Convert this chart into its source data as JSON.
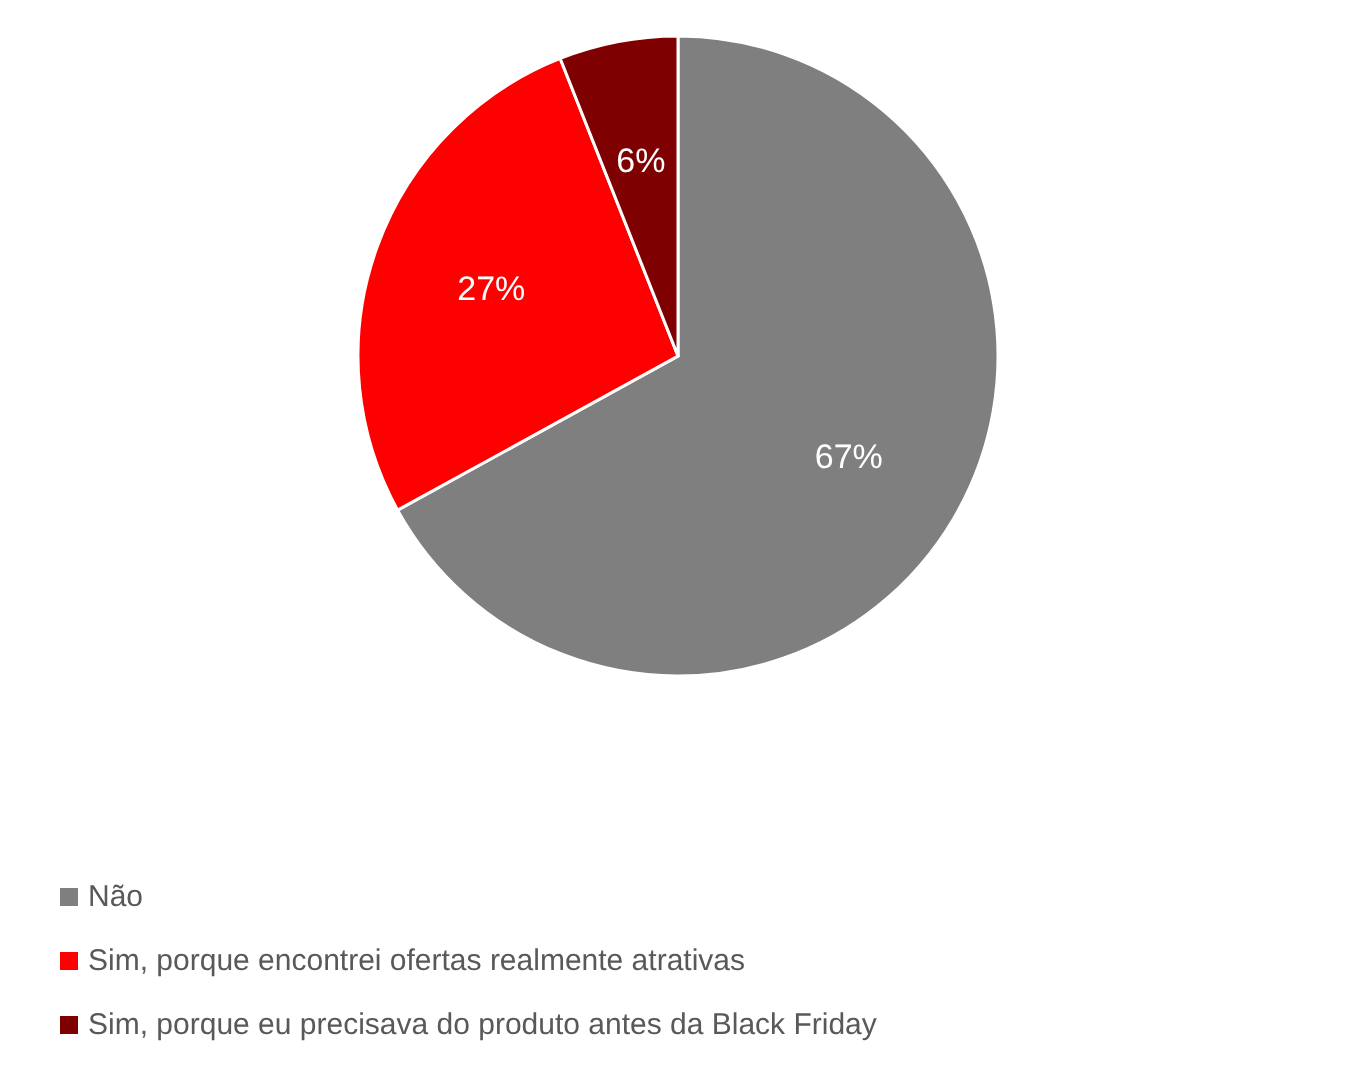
{
  "chart_data": {
    "type": "pie",
    "categories": [
      "Não",
      "Sim, porque encontrei ofertas realmente atrativas",
      "Sim, porque eu precisava do produto antes da Black Friday"
    ],
    "values": [
      67,
      27,
      6
    ],
    "colors": [
      "#7f7f7f",
      "#ff0000",
      "#7f0000"
    ],
    "value_labels": [
      "67%",
      "27%",
      "6%"
    ],
    "legend": "bottom left"
  }
}
